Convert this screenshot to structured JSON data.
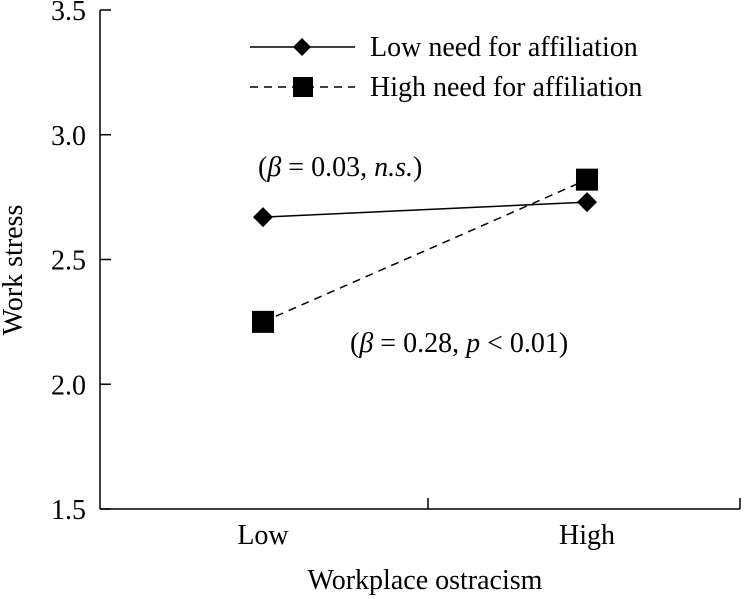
{
  "chart_data": {
    "type": "line",
    "title": "",
    "xlabel": "Workplace ostracism",
    "ylabel": "Work stress",
    "categories": [
      "Low",
      "High"
    ],
    "ylim": [
      1.5,
      3.5
    ],
    "yticks": [
      "1.5",
      "2.0",
      "2.5",
      "3.0",
      "3.5"
    ],
    "grid": false,
    "legend_position": "top-right",
    "series": [
      {
        "name": "Low need for affiliation",
        "values": [
          2.67,
          2.73
        ],
        "line_style": "solid",
        "marker": "diamond",
        "color": "#000000"
      },
      {
        "name": "High need for affiliation",
        "values": [
          2.25,
          2.82
        ],
        "line_style": "dashed",
        "marker": "square",
        "color": "#000000"
      }
    ],
    "annotations": [
      {
        "pre": "(",
        "symbol": "β",
        "mid": " = 0.03, ",
        "italic_tail": "n.s.",
        "post": ")"
      },
      {
        "pre": "(",
        "symbol": "β",
        "mid": " = 0.28, ",
        "italic_tail": "p",
        "post": " < 0.01)"
      }
    ]
  }
}
